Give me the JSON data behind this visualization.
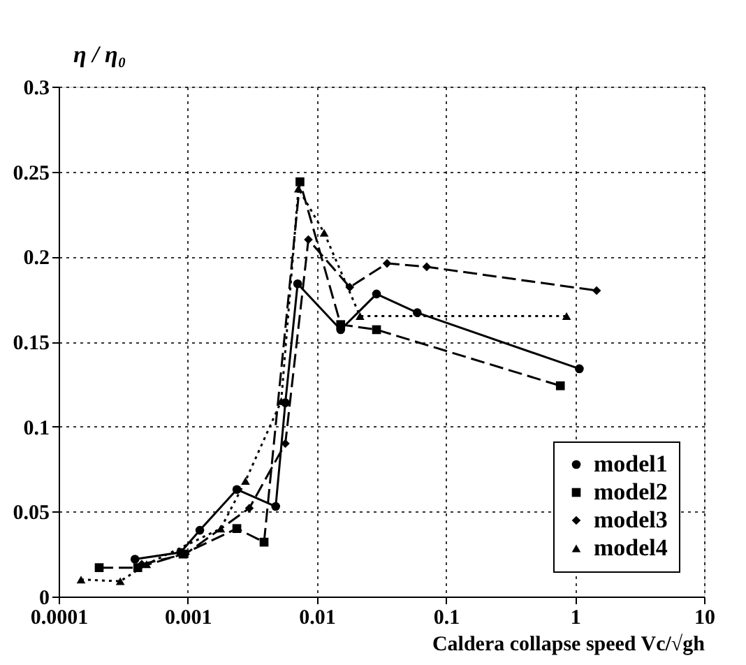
{
  "chart_data": {
    "type": "line",
    "xlabel": "Caldera collapse speed      Vc/√gh",
    "ylabel": "η / η₀",
    "log": "x",
    "grid": true,
    "legend": "bottom right",
    "xlim": [
      0.0001,
      10
    ],
    "xticks": [
      {
        "value": 0.0001,
        "label": "0.0001"
      },
      {
        "value": 0.001,
        "label": "0.001"
      },
      {
        "value": 0.01,
        "label": "0.01"
      },
      {
        "value": 0.1,
        "label": "0.1"
      },
      {
        "value": 1,
        "label": "1"
      },
      {
        "value": 10,
        "label": "10"
      }
    ],
    "ylim": [
      0,
      0.3
    ],
    "yticks": [
      0,
      0.05,
      0.1,
      0.15,
      0.2,
      0.25,
      0.3
    ],
    "series": [
      {
        "name": "model1",
        "color": "#000000",
        "marker": "circle",
        "line_style": "solid",
        "x": [
          0.00039,
          0.00088,
          0.00124,
          0.0024,
          0.0048,
          0.0057,
          0.0071,
          0.0153,
          0.029,
          0.06,
          1.08
        ],
        "values": [
          0.022,
          0.026,
          0.039,
          0.063,
          0.053,
          0.114,
          0.184,
          0.157,
          0.178,
          0.167,
          0.134
        ]
      },
      {
        "name": "model2",
        "color": "#000000",
        "marker": "square",
        "line_style": "dashed",
        "x": [
          0.000206,
          0.00041,
          0.00092,
          0.0024,
          0.0039,
          0.0074,
          0.0153,
          0.029,
          0.77
        ],
        "values": [
          0.017,
          0.017,
          0.025,
          0.04,
          0.032,
          0.244,
          0.16,
          0.157,
          0.124
        ]
      },
      {
        "name": "model3",
        "color": "#000000",
        "marker": "diamond",
        "line_style": "dashed",
        "x": [
          0.00044,
          0.00096,
          0.003,
          0.0057,
          0.0086,
          0.018,
          0.035,
          0.071,
          1.47
        ],
        "values": [
          0.019,
          0.025,
          0.052,
          0.09,
          0.21,
          0.182,
          0.196,
          0.194,
          0.18
        ]
      },
      {
        "name": "model4",
        "color": "#000000",
        "marker": "triangle",
        "line_style": "dotted",
        "x": [
          0.000149,
          0.0003,
          0.00048,
          0.0018,
          0.0028,
          0.0053,
          0.0072,
          0.0114,
          0.0216,
          0.86
        ],
        "values": [
          0.01,
          0.009,
          0.019,
          0.04,
          0.068,
          0.115,
          0.24,
          0.214,
          0.165,
          0.165
        ]
      }
    ]
  }
}
